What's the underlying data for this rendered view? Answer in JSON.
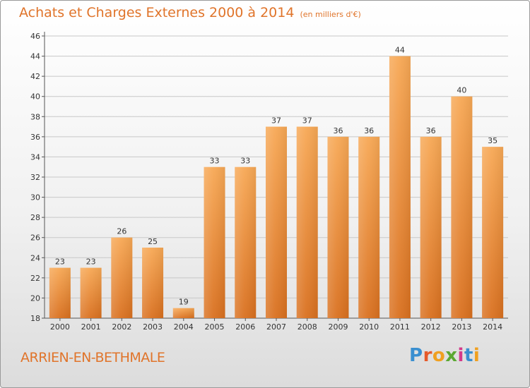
{
  "header": {
    "title": "Achats et Charges Externes 2000 à 2014",
    "subtitle": "(en milliers d'€)"
  },
  "footer": {
    "commune": "ARRIEN-EN-BETHMALE",
    "logo_text": "Proxiti"
  },
  "colors": {
    "accent": "#e0742a",
    "bar_top": "#f7a855",
    "bar_bottom": "#d9701f",
    "logo_letters": [
      "#3a8fd0",
      "#e65a2a",
      "#f0a020",
      "#5aa832",
      "#d43a8a",
      "#3a8fd0",
      "#f0a020"
    ]
  },
  "chart_data": {
    "type": "bar",
    "title": "Achats et Charges Externes 2000 à 2014",
    "subtitle": "(en milliers d'€)",
    "categories": [
      "2000",
      "2001",
      "2002",
      "2003",
      "2004",
      "2005",
      "2006",
      "2007",
      "2008",
      "2009",
      "2010",
      "2011",
      "2012",
      "2013",
      "2014"
    ],
    "values": [
      23,
      23,
      26,
      25,
      19,
      33,
      33,
      37,
      37,
      36,
      36,
      44,
      36,
      40,
      35
    ],
    "ylim": [
      18,
      46
    ],
    "yticks": [
      18,
      20,
      22,
      24,
      26,
      28,
      30,
      32,
      34,
      36,
      38,
      40,
      42,
      44,
      46
    ],
    "grid": "horizontal",
    "data_labels": true
  }
}
